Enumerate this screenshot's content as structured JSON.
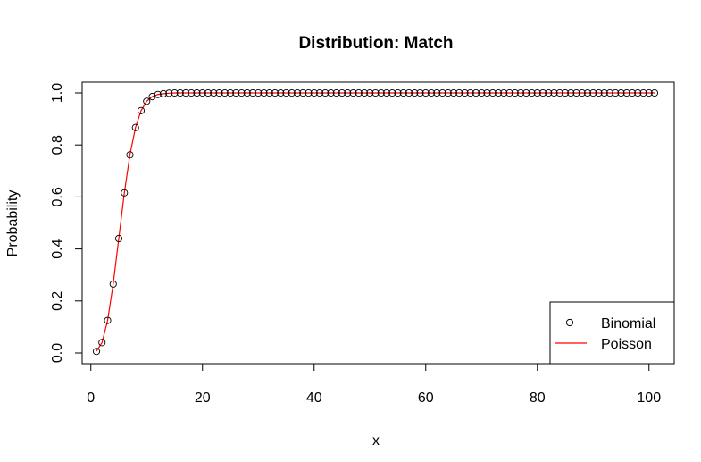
{
  "chart_data": {
    "type": "scatter",
    "title": "Distribution: Match",
    "xlabel": "x",
    "ylabel": "Probability",
    "xlim": [
      1,
      101
    ],
    "ylim": [
      0,
      1
    ],
    "x_ticks": [
      0,
      20,
      40,
      60,
      80,
      100
    ],
    "y_ticks": [
      0.0,
      0.2,
      0.4,
      0.6,
      0.8,
      1.0
    ],
    "x_tick_labels": [
      "0",
      "20",
      "40",
      "60",
      "80",
      "100"
    ],
    "y_tick_labels": [
      "0.0",
      "0.2",
      "0.4",
      "0.6",
      "0.8",
      "1.0"
    ],
    "grid": false,
    "legend_position": "bottom-right",
    "series": [
      {
        "name": "Binomial",
        "kind": "points",
        "color": "#000000",
        "x": [
          1,
          2,
          3,
          4,
          5,
          6,
          7,
          8,
          9,
          10,
          11,
          12,
          13,
          14,
          15,
          16,
          17,
          18,
          19,
          20,
          21,
          22,
          23,
          24,
          25,
          26,
          27,
          28,
          29,
          30,
          31,
          32,
          33,
          34,
          35,
          36,
          37,
          38,
          39,
          40,
          41,
          42,
          43,
          44,
          45,
          46,
          47,
          48,
          49,
          50,
          51,
          52,
          53,
          54,
          55,
          56,
          57,
          58,
          59,
          60,
          61,
          62,
          63,
          64,
          65,
          66,
          67,
          68,
          69,
          70,
          71,
          72,
          73,
          74,
          75,
          76,
          77,
          78,
          79,
          80,
          81,
          82,
          83,
          84,
          85,
          86,
          87,
          88,
          89,
          90,
          91,
          92,
          93,
          94,
          95,
          96,
          97,
          98,
          99,
          100,
          101
        ],
        "values": [
          0.006,
          0.04,
          0.125,
          0.265,
          0.44,
          0.616,
          0.762,
          0.867,
          0.932,
          0.968,
          0.986,
          0.994,
          0.997,
          0.999,
          1,
          1,
          1,
          1,
          1,
          1,
          1,
          1,
          1,
          1,
          1,
          1,
          1,
          1,
          1,
          1,
          1,
          1,
          1,
          1,
          1,
          1,
          1,
          1,
          1,
          1,
          1,
          1,
          1,
          1,
          1,
          1,
          1,
          1,
          1,
          1,
          1,
          1,
          1,
          1,
          1,
          1,
          1,
          1,
          1,
          1,
          1,
          1,
          1,
          1,
          1,
          1,
          1,
          1,
          1,
          1,
          1,
          1,
          1,
          1,
          1,
          1,
          1,
          1,
          1,
          1,
          1,
          1,
          1,
          1,
          1,
          1,
          1,
          1,
          1,
          1,
          1,
          1,
          1,
          1,
          1,
          1,
          1,
          1,
          1,
          1,
          1
        ]
      },
      {
        "name": "Poisson",
        "kind": "line",
        "color": "#ff0000",
        "x": [
          1,
          2,
          3,
          4,
          5,
          6,
          7,
          8,
          9,
          10,
          11,
          12,
          13,
          14,
          15,
          16,
          17,
          18,
          19,
          20,
          21,
          22,
          23,
          24,
          25,
          26,
          27,
          28,
          29,
          30,
          31,
          32,
          33,
          34,
          35,
          36,
          37,
          38,
          39,
          40,
          41,
          42,
          43,
          44,
          45,
          46,
          47,
          48,
          49,
          50,
          51,
          52,
          53,
          54,
          55,
          56,
          57,
          58,
          59,
          60,
          61,
          62,
          63,
          64,
          65,
          66,
          67,
          68,
          69,
          70,
          71,
          72,
          73,
          74,
          75,
          76,
          77,
          78,
          79,
          80,
          81,
          82,
          83,
          84,
          85,
          86,
          87,
          88,
          89,
          90,
          91,
          92,
          93,
          94,
          95,
          96,
          97,
          98,
          99,
          100,
          101
        ],
        "values": [
          0.007,
          0.04,
          0.125,
          0.265,
          0.44,
          0.616,
          0.762,
          0.867,
          0.932,
          0.968,
          0.986,
          0.994,
          0.997,
          0.999,
          1,
          1,
          1,
          1,
          1,
          1,
          1,
          1,
          1,
          1,
          1,
          1,
          1,
          1,
          1,
          1,
          1,
          1,
          1,
          1,
          1,
          1,
          1,
          1,
          1,
          1,
          1,
          1,
          1,
          1,
          1,
          1,
          1,
          1,
          1,
          1,
          1,
          1,
          1,
          1,
          1,
          1,
          1,
          1,
          1,
          1,
          1,
          1,
          1,
          1,
          1,
          1,
          1,
          1,
          1,
          1,
          1,
          1,
          1,
          1,
          1,
          1,
          1,
          1,
          1,
          1,
          1,
          1,
          1,
          1,
          1,
          1,
          1,
          1,
          1,
          1,
          1,
          1,
          1,
          1,
          1,
          1,
          1,
          1,
          1,
          1,
          1
        ]
      }
    ]
  }
}
